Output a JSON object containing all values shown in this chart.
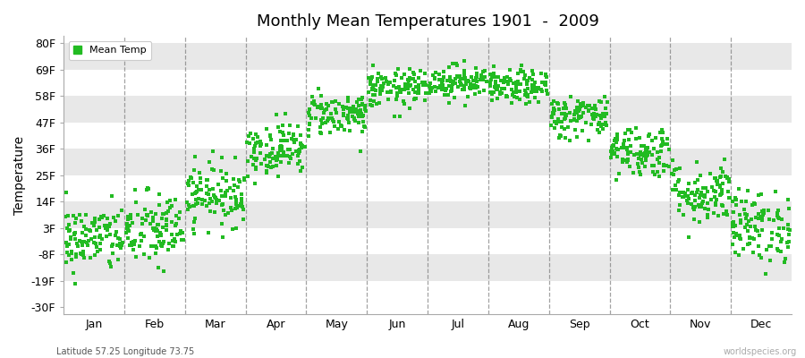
{
  "title": "Monthly Mean Temperatures 1901  -  2009",
  "ylabel": "Temperature",
  "xlabel_bottom": "Latitude 57.25 Longitude 73.75",
  "watermark": "worldspecies.org",
  "legend_label": "Mean Temp",
  "dot_color": "#22bb22",
  "dot_size": 6,
  "yticks": [
    -30,
    -19,
    -8,
    3,
    14,
    25,
    36,
    47,
    58,
    69,
    80
  ],
  "ytick_labels": [
    "-30F",
    "-19F",
    "-8F",
    "3F",
    "14F",
    "25F",
    "36F",
    "47F",
    "58F",
    "69F",
    "80F"
  ],
  "ylim": [
    -33,
    83
  ],
  "months": [
    "Jan",
    "Feb",
    "Mar",
    "Apr",
    "May",
    "Jun",
    "Jul",
    "Aug",
    "Sep",
    "Oct",
    "Nov",
    "Dec"
  ],
  "month_means_F": [
    -1.5,
    2.0,
    17.0,
    36.0,
    50.5,
    61.0,
    64.0,
    61.5,
    49.5,
    35.0,
    17.5,
    3.5
  ],
  "month_stds_F": [
    7.0,
    8.0,
    6.5,
    5.5,
    4.5,
    4.0,
    3.5,
    3.5,
    4.5,
    5.5,
    6.5,
    7.5
  ],
  "n_years": 109,
  "background_color": "#ffffff",
  "band_colors": [
    "#ffffff",
    "#e8e8e8"
  ],
  "grid_color": "#666666",
  "grid_alpha": 0.6
}
